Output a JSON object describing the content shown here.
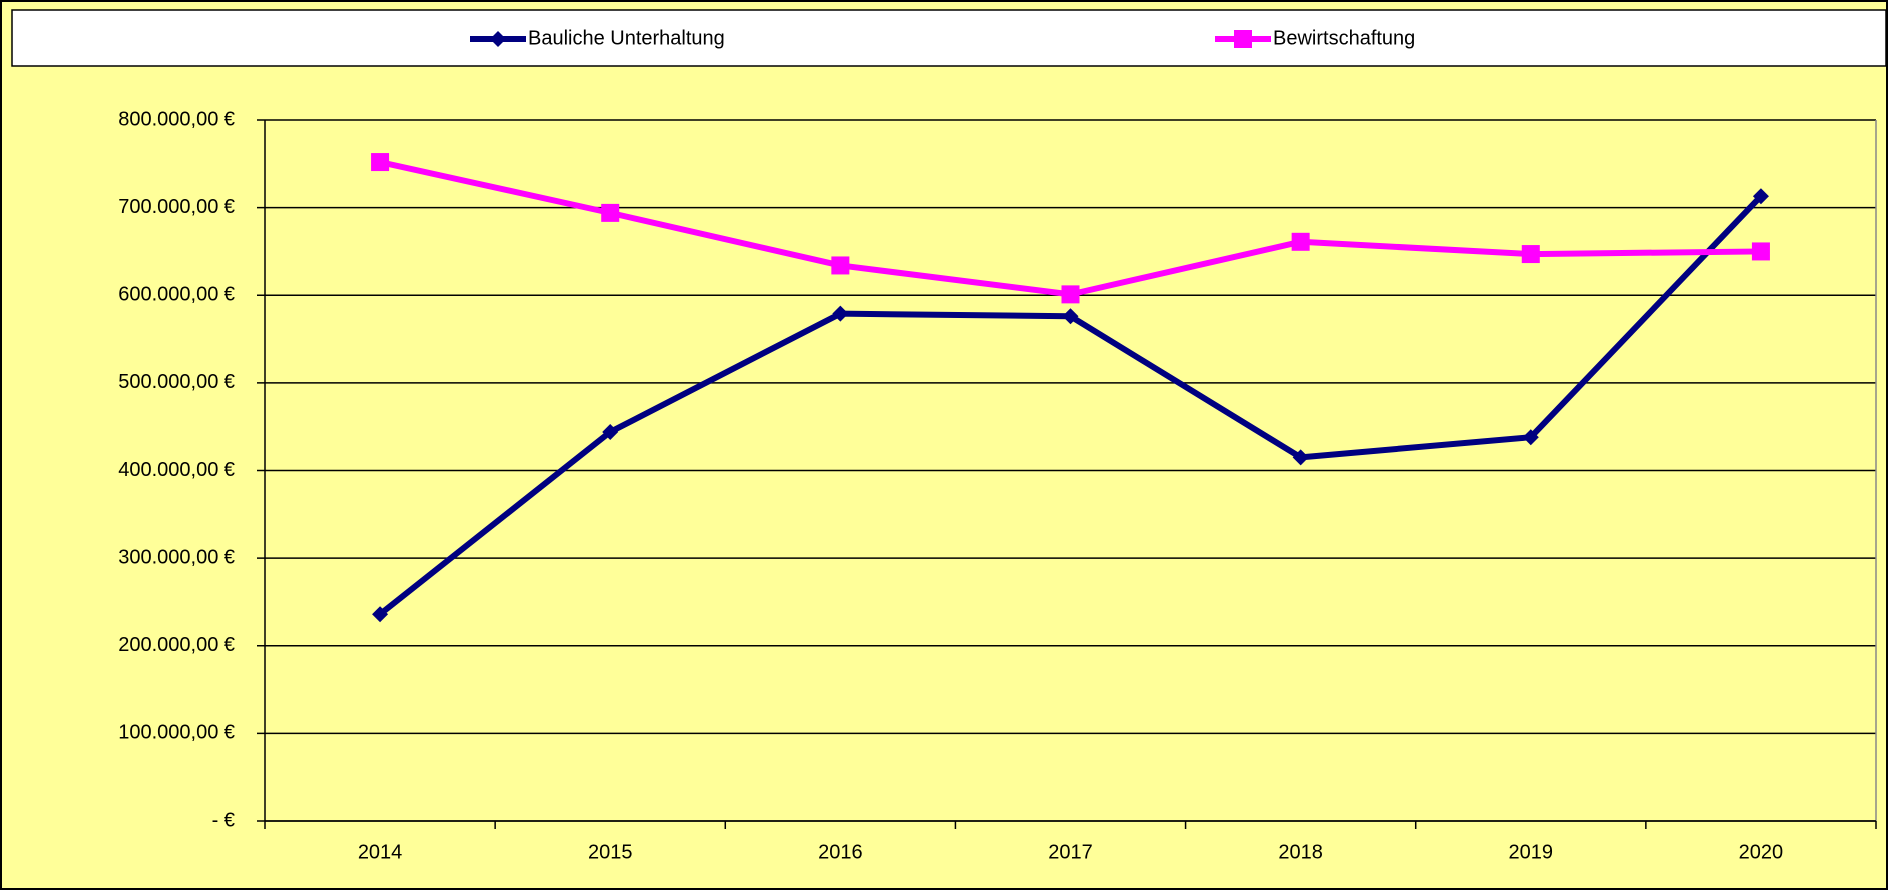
{
  "chart_data": {
    "type": "line",
    "categories": [
      "2014",
      "2015",
      "2016",
      "2017",
      "2018",
      "2019",
      "2020"
    ],
    "series": [
      {
        "name": "Bauliche Unterhaltung",
        "color": "#000080",
        "marker": "diamond",
        "values": [
          236000,
          444000,
          579000,
          576000,
          415000,
          438000,
          713000
        ]
      },
      {
        "name": "Bewirtschaftung",
        "color": "#ff00ff",
        "marker": "square",
        "values": [
          752000,
          694000,
          634000,
          601000,
          661000,
          647000,
          650000
        ]
      }
    ],
    "ylim": [
      0,
      800000
    ],
    "yticks": [
      {
        "value": 0,
        "label": "-  €"
      },
      {
        "value": 100000,
        "label": "100.000,00 €"
      },
      {
        "value": 200000,
        "label": "200.000,00 €"
      },
      {
        "value": 300000,
        "label": "300.000,00 €"
      },
      {
        "value": 400000,
        "label": "400.000,00 €"
      },
      {
        "value": 500000,
        "label": "500.000,00 €"
      },
      {
        "value": 600000,
        "label": "600.000,00 €"
      },
      {
        "value": 700000,
        "label": "700.000,00 €"
      },
      {
        "value": 800000,
        "label": "800.000,00 €"
      }
    ],
    "grid": true,
    "legend": "top",
    "background": "#ffff99"
  }
}
